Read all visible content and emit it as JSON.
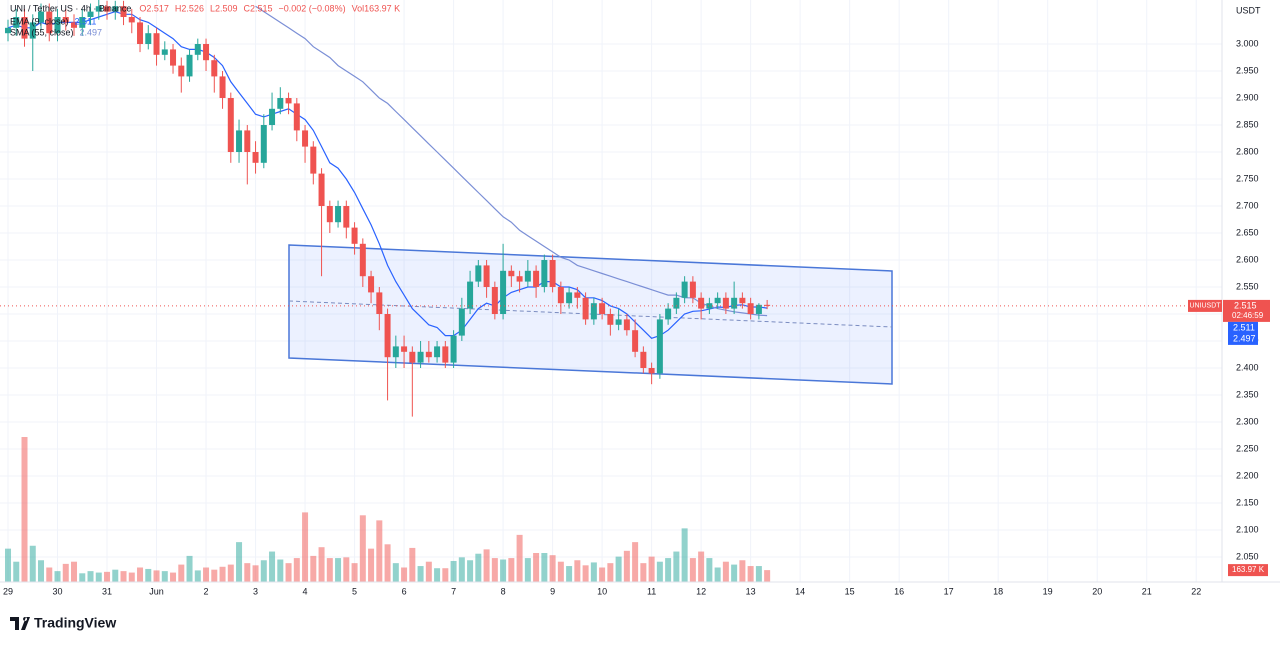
{
  "chart_data": {
    "type": "candlestick",
    "title": "UNI / Tether US · 4h · Binance",
    "ohlc_labels": [
      "O2.517",
      "H2.526",
      "L2.509",
      "C2.515"
    ],
    "change_label": "−0.002 (−0.08%)",
    "volume_label": "Vol163.97 K",
    "currency": "USDT",
    "brand": "TradingView",
    "up_color": "#26a69a",
    "down_color": "#ef5350",
    "x": [
      0,
      4,
      8,
      12,
      16,
      20,
      24,
      28,
      32,
      36,
      40,
      44,
      48,
      52,
      56,
      60,
      64,
      68,
      72,
      76,
      80,
      84,
      88,
      92,
      96,
      100,
      104,
      108,
      112,
      116,
      120,
      124,
      128,
      132,
      136,
      140,
      144,
      148,
      152,
      156,
      160,
      164,
      168,
      172,
      176,
      180,
      184,
      188,
      192,
      196,
      200,
      204,
      208,
      212,
      216,
      220,
      224,
      228,
      232,
      236,
      240,
      244,
      248,
      252,
      256,
      260,
      264,
      268,
      272,
      276,
      280,
      284,
      288,
      292,
      296,
      300,
      304,
      308,
      312,
      316,
      320,
      324,
      328,
      332,
      336,
      340,
      344,
      348,
      352,
      356,
      360,
      364,
      368
    ],
    "open": [
      3.02,
      3.03,
      3.05,
      3.01,
      3.04,
      3.06,
      3.02,
      3.05,
      3.04,
      3.03,
      3.05,
      3.06,
      3.07,
      3.06,
      3.07,
      3.05,
      3.04,
      3.0,
      3.02,
      2.98,
      2.99,
      2.96,
      2.94,
      2.98,
      3.0,
      2.97,
      2.94,
      2.9,
      2.8,
      2.84,
      2.8,
      2.78,
      2.85,
      2.88,
      2.9,
      2.89,
      2.84,
      2.81,
      2.76,
      2.7,
      2.67,
      2.7,
      2.66,
      2.63,
      2.57,
      2.54,
      2.5,
      2.42,
      2.44,
      2.43,
      2.41,
      2.43,
      2.42,
      2.44,
      2.41,
      2.46,
      2.51,
      2.56,
      2.59,
      2.55,
      2.5,
      2.58,
      2.57,
      2.56,
      2.58,
      2.55,
      2.6,
      2.55,
      2.52,
      2.54,
      2.53,
      2.49,
      2.52,
      2.5,
      2.48,
      2.49,
      2.47,
      2.43,
      2.4,
      2.39,
      2.49,
      2.51,
      2.53,
      2.56,
      2.53,
      2.51,
      2.52,
      2.53,
      2.51,
      2.53,
      2.52,
      2.5,
      2.517
    ],
    "high": [
      3.045,
      3.065,
      3.065,
      3.055,
      3.075,
      3.075,
      3.065,
      3.065,
      3.055,
      3.065,
      3.075,
      3.085,
      3.08,
      3.08,
      3.08,
      3.065,
      3.05,
      3.035,
      3.03,
      3.005,
      3.0,
      2.975,
      2.99,
      3.01,
      3.01,
      2.98,
      2.95,
      2.91,
      2.86,
      2.85,
      2.82,
      2.87,
      2.91,
      2.92,
      2.91,
      2.9,
      2.85,
      2.82,
      2.77,
      2.71,
      2.71,
      2.71,
      2.67,
      2.64,
      2.58,
      2.55,
      2.51,
      2.46,
      2.46,
      2.44,
      2.45,
      2.45,
      2.45,
      2.45,
      2.47,
      2.53,
      2.58,
      2.6,
      2.6,
      2.56,
      2.63,
      2.59,
      2.58,
      2.6,
      2.59,
      2.61,
      2.61,
      2.56,
      2.55,
      2.55,
      2.54,
      2.53,
      2.53,
      2.51,
      2.51,
      2.5,
      2.49,
      2.44,
      2.41,
      2.5,
      2.52,
      2.54,
      2.57,
      2.57,
      2.54,
      2.53,
      2.54,
      2.54,
      2.56,
      2.54,
      2.53,
      2.52,
      2.526
    ],
    "low": [
      3.005,
      3.015,
      2.995,
      2.95,
      3.025,
      3.005,
      3.005,
      3.025,
      3.015,
      3.015,
      3.035,
      3.045,
      3.045,
      3.045,
      3.035,
      3.02,
      2.985,
      2.99,
      2.96,
      2.97,
      2.945,
      2.91,
      2.93,
      2.97,
      2.95,
      2.91,
      2.88,
      2.78,
      2.78,
      2.74,
      2.76,
      2.77,
      2.84,
      2.87,
      2.87,
      2.82,
      2.78,
      2.74,
      2.57,
      2.65,
      2.66,
      2.64,
      2.61,
      2.55,
      2.52,
      2.47,
      2.34,
      2.4,
      2.4,
      2.31,
      2.4,
      2.41,
      2.41,
      2.4,
      2.4,
      2.45,
      2.5,
      2.55,
      2.53,
      2.49,
      2.49,
      2.55,
      2.54,
      2.55,
      2.53,
      2.54,
      2.54,
      2.5,
      2.51,
      2.51,
      2.48,
      2.48,
      2.49,
      2.46,
      2.47,
      2.46,
      2.42,
      2.39,
      2.37,
      2.38,
      2.48,
      2.5,
      2.52,
      2.52,
      2.49,
      2.5,
      2.51,
      2.5,
      2.5,
      2.51,
      2.49,
      2.49,
      2.509
    ],
    "close": [
      3.03,
      3.05,
      3.01,
      3.04,
      3.06,
      3.02,
      3.05,
      3.04,
      3.03,
      3.05,
      3.06,
      3.07,
      3.06,
      3.07,
      3.05,
      3.04,
      3.0,
      3.02,
      2.98,
      2.99,
      2.96,
      2.94,
      2.98,
      3.0,
      2.97,
      2.94,
      2.9,
      2.8,
      2.84,
      2.8,
      2.78,
      2.85,
      2.88,
      2.9,
      2.89,
      2.84,
      2.81,
      2.76,
      2.7,
      2.67,
      2.7,
      2.66,
      2.63,
      2.57,
      2.54,
      2.5,
      2.42,
      2.44,
      2.43,
      2.41,
      2.43,
      2.42,
      2.44,
      2.41,
      2.46,
      2.51,
      2.56,
      2.59,
      2.55,
      2.5,
      2.58,
      2.57,
      2.56,
      2.58,
      2.55,
      2.6,
      2.55,
      2.52,
      2.54,
      2.53,
      2.49,
      2.52,
      2.5,
      2.48,
      2.49,
      2.47,
      2.43,
      2.4,
      2.39,
      2.49,
      2.51,
      2.53,
      2.56,
      2.53,
      2.51,
      2.52,
      2.53,
      2.51,
      2.53,
      2.52,
      2.5,
      2.517,
      2.515
    ],
    "indicators": [
      {
        "name": "EMA (9, close)",
        "color": "#2962ff",
        "last_value": 2.511,
        "values": [
          3.03,
          3.035,
          3.03,
          3.03,
          3.04,
          3.035,
          3.04,
          3.04,
          3.04,
          3.04,
          3.045,
          3.05,
          3.055,
          3.06,
          3.055,
          3.055,
          3.045,
          3.04,
          3.03,
          3.02,
          3.01,
          2.995,
          2.99,
          2.99,
          2.985,
          2.975,
          2.96,
          2.93,
          2.91,
          2.89,
          2.87,
          2.865,
          2.87,
          2.875,
          2.88,
          2.87,
          2.86,
          2.84,
          2.81,
          2.78,
          2.77,
          2.75,
          2.725,
          2.695,
          2.665,
          2.63,
          2.59,
          2.56,
          2.535,
          2.51,
          2.495,
          2.48,
          2.475,
          2.46,
          2.46,
          2.47,
          2.49,
          2.51,
          2.52,
          2.515,
          2.53,
          2.54,
          2.545,
          2.55,
          2.55,
          2.56,
          2.56,
          2.55,
          2.55,
          2.545,
          2.53,
          2.53,
          2.525,
          2.515,
          2.51,
          2.5,
          2.485,
          2.47,
          2.455,
          2.46,
          2.47,
          2.485,
          2.5,
          2.505,
          2.506,
          2.509,
          2.513,
          2.512,
          2.516,
          2.517,
          2.513,
          2.513,
          2.511
        ]
      },
      {
        "name": "SMA (55, close)",
        "color": "#7b8fd6",
        "last_value": 2.497,
        "values": [
          null,
          null,
          null,
          null,
          null,
          null,
          null,
          null,
          null,
          null,
          null,
          null,
          null,
          null,
          null,
          null,
          null,
          null,
          null,
          null,
          null,
          null,
          null,
          null,
          null,
          null,
          null,
          null,
          null,
          null,
          3.07,
          3.06,
          3.05,
          3.04,
          3.03,
          3.02,
          3.01,
          2.995,
          2.985,
          2.975,
          2.96,
          2.95,
          2.94,
          2.93,
          2.915,
          2.9,
          2.89,
          2.875,
          2.86,
          2.845,
          2.83,
          2.815,
          2.8,
          2.785,
          2.77,
          2.755,
          2.74,
          2.725,
          2.71,
          2.695,
          2.68,
          2.67,
          2.655,
          2.645,
          2.635,
          2.625,
          2.615,
          2.605,
          2.6,
          2.59,
          2.585,
          2.58,
          2.575,
          2.57,
          2.565,
          2.56,
          2.555,
          2.55,
          2.545,
          2.54,
          2.535,
          2.535,
          2.53,
          2.53,
          2.52,
          2.515,
          2.51,
          2.507,
          2.504,
          2.502,
          2.5,
          2.498,
          2.497
        ]
      }
    ],
    "volume": {
      "label": "163.97 K",
      "vlim": [
        0,
        2000
      ],
      "values": [
        460,
        280,
        2000,
        500,
        300,
        200,
        150,
        250,
        280,
        120,
        150,
        130,
        140,
        170,
        150,
        130,
        200,
        180,
        160,
        150,
        130,
        240,
        360,
        160,
        200,
        170,
        210,
        240,
        550,
        260,
        230,
        300,
        420,
        310,
        260,
        330,
        960,
        360,
        480,
        330,
        330,
        340,
        260,
        920,
        460,
        850,
        520,
        260,
        200,
        470,
        220,
        280,
        190,
        190,
        290,
        340,
        300,
        390,
        450,
        330,
        310,
        330,
        650,
        330,
        400,
        400,
        370,
        280,
        220,
        300,
        230,
        270,
        200,
        260,
        350,
        430,
        550,
        260,
        350,
        280,
        330,
        420,
        740,
        330,
        420,
        330,
        200,
        280,
        240,
        300,
        220,
        220,
        163.97
      ]
    },
    "price_tag": {
      "symbol": "UNIUSDT",
      "value": 2.515,
      "countdown": "02:46:59"
    },
    "xlim": [
      -3.88,
      588.5
    ],
    "ylim": [
      2.0037,
      3.0815
    ],
    "xticks": [
      {
        "value": 0,
        "label": "29"
      },
      {
        "value": 24,
        "label": "30"
      },
      {
        "value": 48,
        "label": "31"
      },
      {
        "value": 72,
        "label": "Jun"
      },
      {
        "value": 96,
        "label": "2"
      },
      {
        "value": 120,
        "label": "3"
      },
      {
        "value": 144,
        "label": "4"
      },
      {
        "value": 168,
        "label": "5"
      },
      {
        "value": 192,
        "label": "6"
      },
      {
        "value": 216,
        "label": "7"
      },
      {
        "value": 240,
        "label": "8"
      },
      {
        "value": 264,
        "label": "9"
      },
      {
        "value": 288,
        "label": "10"
      },
      {
        "value": 312,
        "label": "11"
      },
      {
        "value": 336,
        "label": "12"
      },
      {
        "value": 360,
        "label": "13"
      },
      {
        "value": 384,
        "label": "14"
      },
      {
        "value": 408,
        "label": "15"
      },
      {
        "value": 432,
        "label": "16"
      },
      {
        "value": 456,
        "label": "17"
      },
      {
        "value": 480,
        "label": "18"
      },
      {
        "value": 504,
        "label": "19"
      },
      {
        "value": 528,
        "label": "20"
      },
      {
        "value": 552,
        "label": "21"
      },
      {
        "value": 576,
        "label": "22"
      }
    ],
    "yticks": [
      {
        "value": 3.0,
        "label": "3.000"
      },
      {
        "value": 2.95,
        "label": "2.950"
      },
      {
        "value": 2.9,
        "label": "2.900"
      },
      {
        "value": 2.85,
        "label": "2.850"
      },
      {
        "value": 2.8,
        "label": "2.800"
      },
      {
        "value": 2.75,
        "label": "2.750"
      },
      {
        "value": 2.7,
        "label": "2.700"
      },
      {
        "value": 2.65,
        "label": "2.650"
      },
      {
        "value": 2.6,
        "label": "2.600"
      },
      {
        "value": 2.55,
        "label": "2.550"
      },
      {
        "value": 2.5,
        "label": "2.500"
      },
      {
        "value": 2.45,
        "label": "2.450"
      },
      {
        "value": 2.4,
        "label": "2.400"
      },
      {
        "value": 2.35,
        "label": "2.350"
      },
      {
        "value": 2.3,
        "label": "2.300"
      },
      {
        "value": 2.25,
        "label": "2.250"
      },
      {
        "value": 2.2,
        "label": "2.200"
      },
      {
        "value": 2.15,
        "label": "2.150"
      },
      {
        "value": 2.1,
        "label": "2.100"
      },
      {
        "value": 2.05,
        "label": "2.050"
      }
    ],
    "grid": true
  }
}
